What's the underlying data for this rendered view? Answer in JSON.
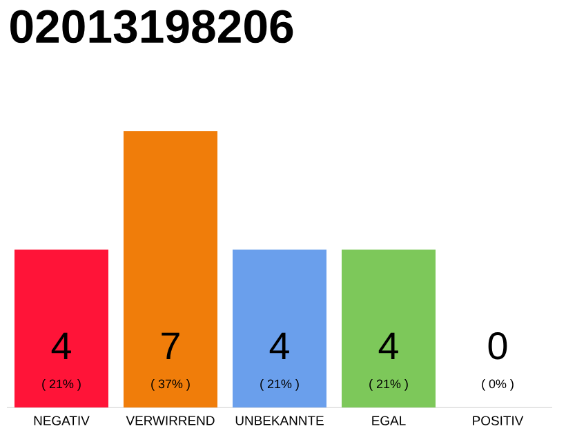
{
  "chart_data": {
    "type": "bar",
    "title": "02013198206",
    "categories": [
      "NEGATIV",
      "VERWIRREND",
      "UNBEKANNTE",
      "EGAL",
      "POSITIV"
    ],
    "values": [
      4,
      7,
      4,
      4,
      0
    ],
    "colors": [
      "#ff1438",
      "#f07d0a",
      "#6a9fec",
      "#7dc85a",
      "#cccccc"
    ],
    "value_labels": [
      "4",
      "7",
      "4",
      "4",
      "0"
    ],
    "annotations": [
      "( 21% )",
      "( 37% )",
      "( 21% )",
      "( 21% )",
      "( 0% )"
    ]
  }
}
